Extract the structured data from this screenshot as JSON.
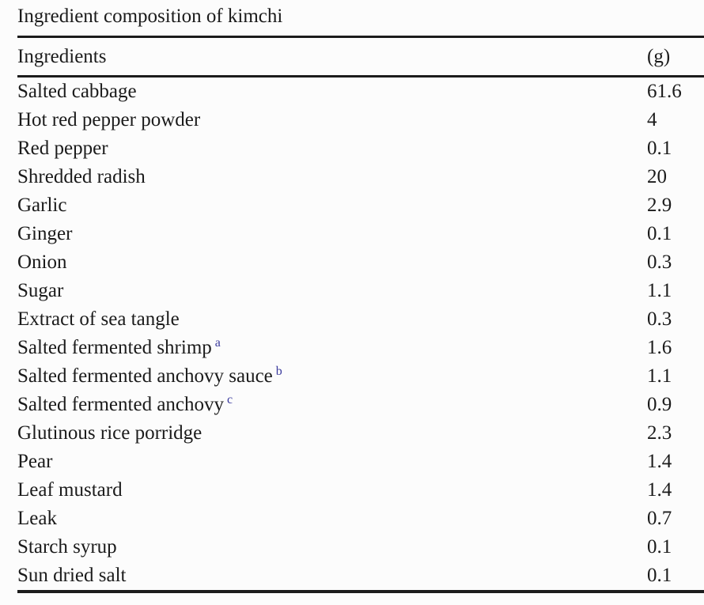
{
  "table": {
    "caption": "Ingredient composition of kimchi",
    "columns": {
      "ingredient": "Ingredients",
      "amount": "(g)"
    },
    "rows": [
      {
        "ingredient": "Salted cabbage",
        "footnote": "",
        "amount": "61.6"
      },
      {
        "ingredient": "Hot red pepper powder",
        "footnote": "",
        "amount": "4"
      },
      {
        "ingredient": "Red pepper",
        "footnote": "",
        "amount": "0.1"
      },
      {
        "ingredient": "Shredded radish",
        "footnote": "",
        "amount": "20"
      },
      {
        "ingredient": "Garlic",
        "footnote": "",
        "amount": "2.9"
      },
      {
        "ingredient": "Ginger",
        "footnote": "",
        "amount": "0.1"
      },
      {
        "ingredient": "Onion",
        "footnote": "",
        "amount": "0.3"
      },
      {
        "ingredient": "Sugar",
        "footnote": "",
        "amount": "1.1"
      },
      {
        "ingredient": "Extract of sea tangle",
        "footnote": "",
        "amount": "0.3"
      },
      {
        "ingredient": "Salted fermented shrimp",
        "footnote": "a",
        "amount": "1.6"
      },
      {
        "ingredient": "Salted fermented anchovy sauce",
        "footnote": "b",
        "amount": "1.1"
      },
      {
        "ingredient": "Salted fermented anchovy",
        "footnote": "c",
        "amount": "0.9"
      },
      {
        "ingredient": "Glutinous rice porridge",
        "footnote": "",
        "amount": "2.3"
      },
      {
        "ingredient": "Pear",
        "footnote": "",
        "amount": "1.4"
      },
      {
        "ingredient": "Leaf mustard",
        "footnote": "",
        "amount": "1.4"
      },
      {
        "ingredient": "Leak",
        "footnote": "",
        "amount": "0.7"
      },
      {
        "ingredient": "Starch syrup",
        "footnote": "",
        "amount": "0.1"
      },
      {
        "ingredient": "Sun dried salt",
        "footnote": "",
        "amount": "0.1"
      }
    ]
  },
  "colors": {
    "text": "#1b1b1b",
    "rule": "#1c1c1c",
    "footnote_link": "#3b3b9d",
    "background": "#fcfcfc"
  }
}
